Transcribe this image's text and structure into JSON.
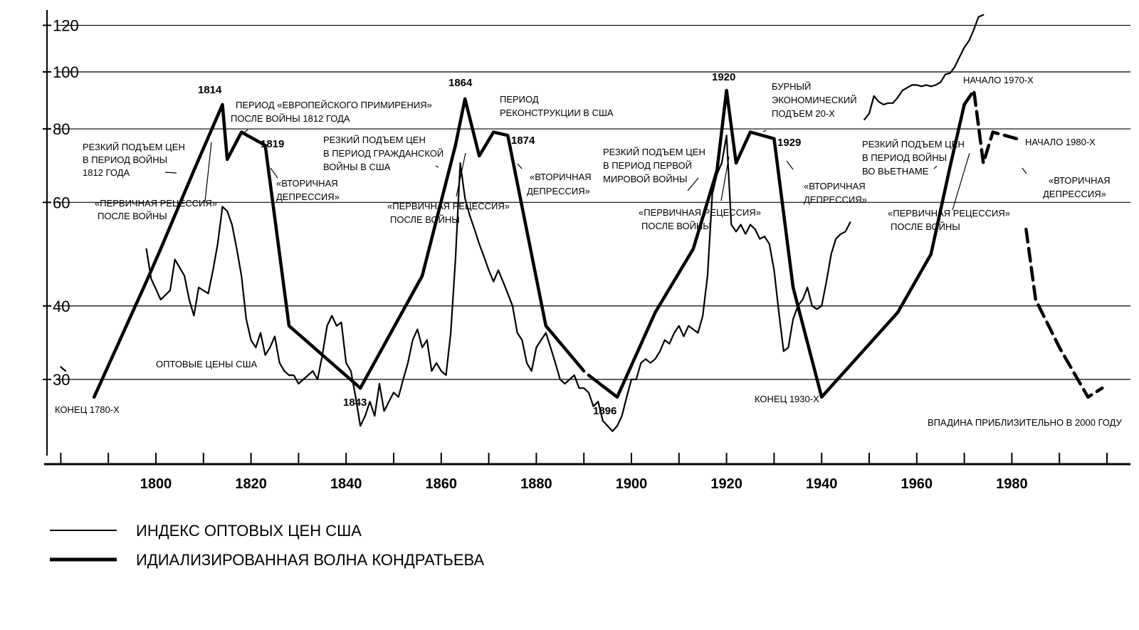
{
  "chart_data": {
    "type": "line",
    "y_scale": "log",
    "ylim": [
      24,
      125
    ],
    "xlim": [
      1780,
      2000
    ],
    "grid": "horizontal",
    "y_ticks": [
      {
        "value": 120,
        "label": "120"
      },
      {
        "value": 100,
        "label": "100"
      },
      {
        "value": 80,
        "label": "80"
      },
      {
        "value": 60,
        "label": "60"
      },
      {
        "value": 40,
        "label": "40"
      },
      {
        "value": 30,
        "label": "30"
      }
    ],
    "x_ticks": [
      {
        "value": 1800,
        "label": "1800"
      },
      {
        "value": 1820,
        "label": "1820"
      },
      {
        "value": 1840,
        "label": "1840"
      },
      {
        "value": 1860,
        "label": "1860"
      },
      {
        "value": 1880,
        "label": "1880"
      },
      {
        "value": 1900,
        "label": "1900"
      },
      {
        "value": 1920,
        "label": "1920"
      },
      {
        "value": 1940,
        "label": "1940"
      },
      {
        "value": 1960,
        "label": "1960"
      },
      {
        "value": 1980,
        "label": "1980"
      }
    ],
    "series": [
      {
        "name": "ИНДЕКС ОПТОВЫХ ЦЕН США",
        "style": "thin",
        "segments": [
          [
            [
              1780,
              31.5
            ],
            [
              1781,
              31
            ]
          ],
          [
            [
              1798,
              50
            ],
            [
              1799,
              44.5
            ],
            [
              1801,
              41
            ],
            [
              1803,
              42.5
            ],
            [
              1804,
              48
            ],
            [
              1806,
              45
            ],
            [
              1807,
              41
            ],
            [
              1808,
              38.5
            ],
            [
              1809,
              43
            ],
            [
              1810,
              42.5
            ],
            [
              1811,
              42
            ],
            [
              1812,
              46
            ],
            [
              1813,
              51
            ],
            [
              1814,
              59
            ],
            [
              1815,
              58
            ],
            [
              1816,
              55
            ],
            [
              1817,
              50
            ],
            [
              1818,
              45
            ],
            [
              1819,
              38
            ],
            [
              1820,
              35
            ],
            [
              1821,
              34
            ],
            [
              1822,
              36
            ],
            [
              1823,
              33
            ],
            [
              1824,
              34
            ],
            [
              1825,
              35.5
            ],
            [
              1826,
              32
            ],
            [
              1827,
              31
            ],
            [
              1828,
              30.5
            ],
            [
              1829,
              30.5
            ],
            [
              1830,
              29.5
            ],
            [
              1831,
              30
            ],
            [
              1832,
              30.5
            ],
            [
              1833,
              31
            ],
            [
              1834,
              30
            ],
            [
              1835,
              33
            ],
            [
              1836,
              37
            ],
            [
              1837,
              38.5
            ],
            [
              1838,
              37
            ],
            [
              1839,
              37.5
            ],
            [
              1840,
              32
            ],
            [
              1841,
              31
            ],
            [
              1842,
              28
            ],
            [
              1843,
              25
            ],
            [
              1844,
              26
            ],
            [
              1845,
              27.5
            ],
            [
              1846,
              26
            ],
            [
              1847,
              29.5
            ],
            [
              1848,
              26.5
            ],
            [
              1849,
              27.5
            ],
            [
              1850,
              28.5
            ],
            [
              1851,
              28
            ],
            [
              1852,
              30
            ],
            [
              1853,
              32
            ],
            [
              1854,
              35
            ],
            [
              1855,
              36.5
            ],
            [
              1856,
              34
            ],
            [
              1857,
              35
            ],
            [
              1858,
              31
            ],
            [
              1859,
              32
            ],
            [
              1860,
              31
            ],
            [
              1861,
              30.5
            ],
            [
              1862,
              36
            ],
            [
              1863,
              48
            ],
            [
              1864,
              70
            ],
            [
              1865,
              61
            ],
            [
              1866,
              57
            ],
            [
              1867,
              54
            ],
            [
              1868,
              51
            ],
            [
              1869,
              48.5
            ],
            [
              1870,
              46
            ],
            [
              1871,
              44
            ],
            [
              1872,
              46
            ],
            [
              1873,
              44
            ],
            [
              1874,
              42
            ],
            [
              1875,
              40
            ],
            [
              1876,
              36
            ],
            [
              1877,
              35
            ],
            [
              1878,
              32
            ],
            [
              1879,
              31
            ],
            [
              1880,
              34
            ],
            [
              1881,
              35
            ],
            [
              1882,
              36
            ],
            [
              1883,
              34
            ],
            [
              1884,
              32
            ],
            [
              1885,
              30
            ],
            [
              1886,
              29.5
            ],
            [
              1887,
              30
            ],
            [
              1888,
              30.5
            ],
            [
              1889,
              29
            ],
            [
              1890,
              29
            ],
            [
              1891,
              28.5
            ],
            [
              1892,
              27
            ],
            [
              1893,
              27.5
            ],
            [
              1894,
              25.5
            ],
            [
              1895,
              25
            ],
            [
              1896,
              24.5
            ],
            [
              1897,
              25
            ],
            [
              1898,
              26
            ],
            [
              1899,
              28
            ],
            [
              1900,
              30
            ],
            [
              1901,
              30
            ],
            [
              1902,
              32
            ],
            [
              1903,
              32.5
            ],
            [
              1904,
              32
            ],
            [
              1905,
              32.5
            ],
            [
              1906,
              33.5
            ],
            [
              1907,
              35
            ],
            [
              1908,
              34.5
            ],
            [
              1909,
              36
            ],
            [
              1910,
              37
            ],
            [
              1911,
              35.5
            ],
            [
              1912,
              37
            ],
            [
              1913,
              36.5
            ],
            [
              1914,
              36
            ],
            [
              1915,
              38.5
            ],
            [
              1916,
              45
            ],
            [
              1917,
              62
            ],
            [
              1918,
              67
            ],
            [
              1919,
              70
            ],
            [
              1920,
              78
            ],
            [
              1921,
              55
            ],
            [
              1922,
              53.5
            ],
            [
              1923,
              55
            ],
            [
              1924,
              53
            ],
            [
              1925,
              55
            ],
            [
              1926,
              54
            ],
            [
              1927,
              52
            ],
            [
              1928,
              52.5
            ],
            [
              1929,
              51
            ],
            [
              1930,
              46
            ],
            [
              1931,
              39
            ],
            [
              1932,
              33.5
            ],
            [
              1933,
              34
            ],
            [
              1934,
              38
            ],
            [
              1935,
              40
            ],
            [
              1936,
              41
            ],
            [
              1937,
              43
            ],
            [
              1938,
              40
            ],
            [
              1939,
              39.5
            ],
            [
              1940,
              40
            ],
            [
              1941,
              44
            ],
            [
              1942,
              49
            ],
            [
              1943,
              52
            ],
            [
              1944,
              53
            ],
            [
              1945,
              53.5
            ],
            [
              1946,
              55.5
            ]
          ],
          [
            [
              1949,
              83
            ],
            [
              1950,
              85
            ],
            [
              1951,
              91
            ],
            [
              1952,
              89
            ],
            [
              1953,
              88
            ],
            [
              1954,
              88.5
            ],
            [
              1955,
              88.5
            ],
            [
              1956,
              90.5
            ],
            [
              1957,
              93
            ],
            [
              1958,
              94
            ],
            [
              1959,
              95
            ],
            [
              1960,
              95
            ],
            [
              1961,
              94.5
            ],
            [
              1962,
              95
            ],
            [
              1963,
              94.5
            ],
            [
              1964,
              95
            ],
            [
              1965,
              96
            ],
            [
              1966,
              99
            ],
            [
              1967,
              99.5
            ],
            [
              1968,
              102
            ],
            [
              1969,
              106
            ],
            [
              1970,
              110
            ],
            [
              1971,
              113
            ],
            [
              1972,
              118
            ],
            [
              1973,
              124
            ],
            [
              1974,
              125
            ]
          ]
        ]
      },
      {
        "name": "ИДИАЛИЗИРОВАННАЯ ВОЛНА КОНДРАТЬЕВА",
        "style": "thick",
        "segments": [
          [
            [
              1787,
              28
            ],
            [
              1798,
              44
            ],
            [
              1801,
              50
            ],
            [
              1808,
              68
            ],
            [
              1814,
              88
            ],
            [
              1815,
              71
            ],
            [
              1818,
              79
            ],
            [
              1823,
              75
            ],
            [
              1828,
              37
            ],
            [
              1843,
              29
            ],
            [
              1856,
              45
            ],
            [
              1863,
              75
            ],
            [
              1865,
              90
            ],
            [
              1868,
              72
            ],
            [
              1871,
              79
            ],
            [
              1874,
              78
            ],
            [
              1882,
              37
            ],
            [
              1890,
              31
            ]
          ],
          [
            [
              1891,
              30.5
            ],
            [
              1897,
              28
            ],
            [
              1905,
              39
            ],
            [
              1913,
              50
            ],
            [
              1918,
              68
            ],
            [
              1920,
              93
            ],
            [
              1922,
              70
            ],
            [
              1925,
              79
            ],
            [
              1930,
              77
            ],
            [
              1934,
              43
            ],
            [
              1940,
              28
            ],
            [
              1956,
              39
            ],
            [
              1963,
              49
            ],
            [
              1967,
              69
            ],
            [
              1970,
              88
            ]
          ],
          [
            [
              1970,
              88
            ],
            [
              1972,
              93
            ],
            [
              1974,
              70
            ],
            [
              1976,
              79
            ],
            [
              1981,
              77
            ]
          ],
          [
            [
              1983,
              54
            ],
            [
              1985,
              41
            ],
            [
              1990,
              34
            ],
            [
              1996,
              28
            ],
            [
              1999,
              29
            ]
          ]
        ]
      }
    ],
    "annotations": {
      "y1814": "1814",
      "y1819": "1819",
      "y1843": "1843",
      "y1864": "1864",
      "y1874": "1874",
      "y1896": "1896",
      "y1920": "1920",
      "y1929": "1929",
      "konets1780": "КОНЕЦ 1780-Х",
      "war1812": [
        "РЕЗКИЙ ПОДЪЕМ ЦЕН",
        "В ПЕРИОД ВОЙНЫ",
        "1812 ГОДА"
      ],
      "recession1": [
        "«ПЕРВИЧНАЯ РЕЦЕССИЯ»",
        "ПОСЛЕ ВОЙНЫ"
      ],
      "european": [
        "ПЕРИОД «ЕВРОПЕЙСКОГО ПРИМИРЕНИЯ»",
        "ПОСЛЕ ВОЙНЫ 1812 ГОДА"
      ],
      "secondary1": [
        "«ВТОРИЧНАЯ",
        "ДЕПРЕССИЯ»"
      ],
      "wholesale": "ОПТОВЫЕ ЦЕНЫ США",
      "civilwar": [
        "РЕЗКИЙ ПОДЪЕМ ЦЕН",
        "В ПЕРИОД ГРАЖДАНСКОЙ",
        "ВОЙНЫ В США"
      ],
      "recession2": [
        "«ПЕРВИЧНАЯ РЕЦЕССИЯ»",
        "ПОСЛЕ ВОЙНЫ"
      ],
      "reconstruction": [
        "ПЕРИОД",
        "РЕКОНСТРУКЦИИ В США"
      ],
      "secondary2": [
        "«ВТОРИЧНАЯ",
        "ДЕПРЕССИЯ»"
      ],
      "ww1": [
        "РЕЗКИЙ ПОДЪЕМ ЦЕН",
        "В ПЕРИОД ПЕРВОЙ",
        "МИРОВОЙ ВОЙНЫ"
      ],
      "recession3": [
        "«ПЕРВИЧНАЯ РЕЦЕССИЯ»",
        "ПОСЛЕ ВОЙНЫ"
      ],
      "boom20s": [
        "БУРНЫЙ",
        "ЭКОНОМИЧЕСКИЙ",
        "ПОДЪЕМ 20-Х"
      ],
      "secondary3": [
        "«ВТОРИЧНАЯ",
        "ДЕПРЕССИЯ»"
      ],
      "konets1930": "КОНЕЦ 1930-Х",
      "vietnam": [
        "РЕЗКИЙ ПОДЪЕМ ЦЕН",
        "В ПЕРИОД ВОЙНЫ",
        "ВО ВЬЕТНАМЕ"
      ],
      "recession4": [
        "«ПЕРВИЧНАЯ РЕЦЕССИЯ»",
        "ПОСЛЕ ВОЙНЫ"
      ],
      "start1970": "НАЧАЛО 1970-Х",
      "start1980": "НАЧАЛО 1980-Х",
      "secondary4": [
        "«ВТОРИЧНАЯ",
        "ДЕПРЕССИЯ»"
      ],
      "trough2000": "ВПАДИНА ПРИБЛИЗИТЕЛЬНО В 2000 ГОДУ"
    },
    "legend": [
      {
        "style": "thin",
        "label": "ИНДЕКС ОПТОВЫХ ЦЕН США"
      },
      {
        "style": "thick",
        "label": "ИДИАЛИЗИРОВАННАЯ ВОЛНА КОНДРАТЬЕВА"
      }
    ],
    "legend_placement": "bottom-left"
  }
}
